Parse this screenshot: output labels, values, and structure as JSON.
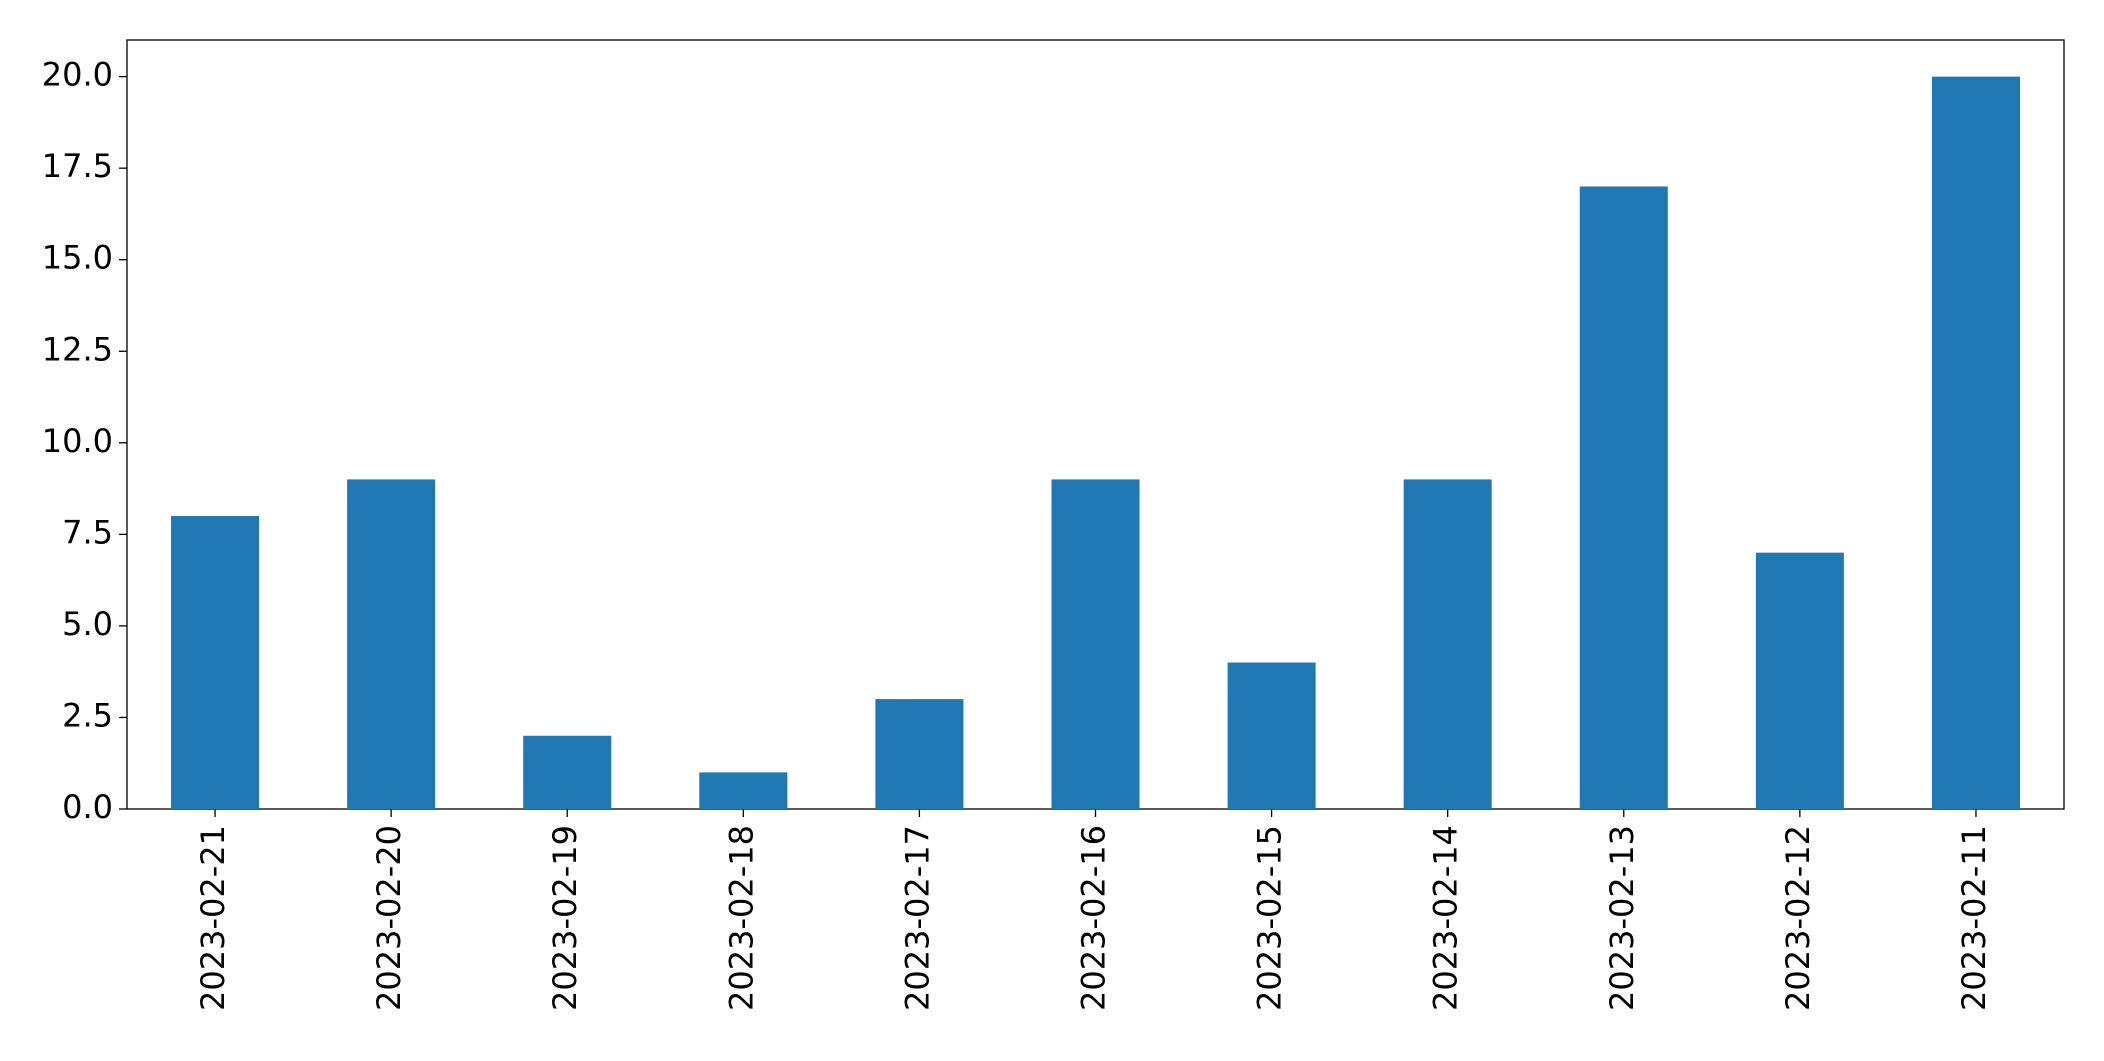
{
  "chart_data": {
    "type": "bar",
    "categories": [
      "2023-02-21",
      "2023-02-20",
      "2023-02-19",
      "2023-02-18",
      "2023-02-17",
      "2023-02-16",
      "2023-02-15",
      "2023-02-14",
      "2023-02-13",
      "2023-02-12",
      "2023-02-11"
    ],
    "values": [
      8,
      9,
      2,
      1,
      3,
      9,
      4,
      9,
      17,
      7,
      20
    ],
    "color": "#1f77b4",
    "ylim": [
      0,
      21
    ],
    "yticks": [
      {
        "value": 0,
        "label": "0.0"
      },
      2.5,
      {
        "value": 5,
        "label": "5.0"
      },
      7.5,
      {
        "value": 10,
        "label": "10.0"
      },
      12.5,
      {
        "value": 15,
        "label": "15.0"
      },
      17.5,
      {
        "value": 20,
        "label": "20.0"
      }
    ],
    "grid": false
  }
}
